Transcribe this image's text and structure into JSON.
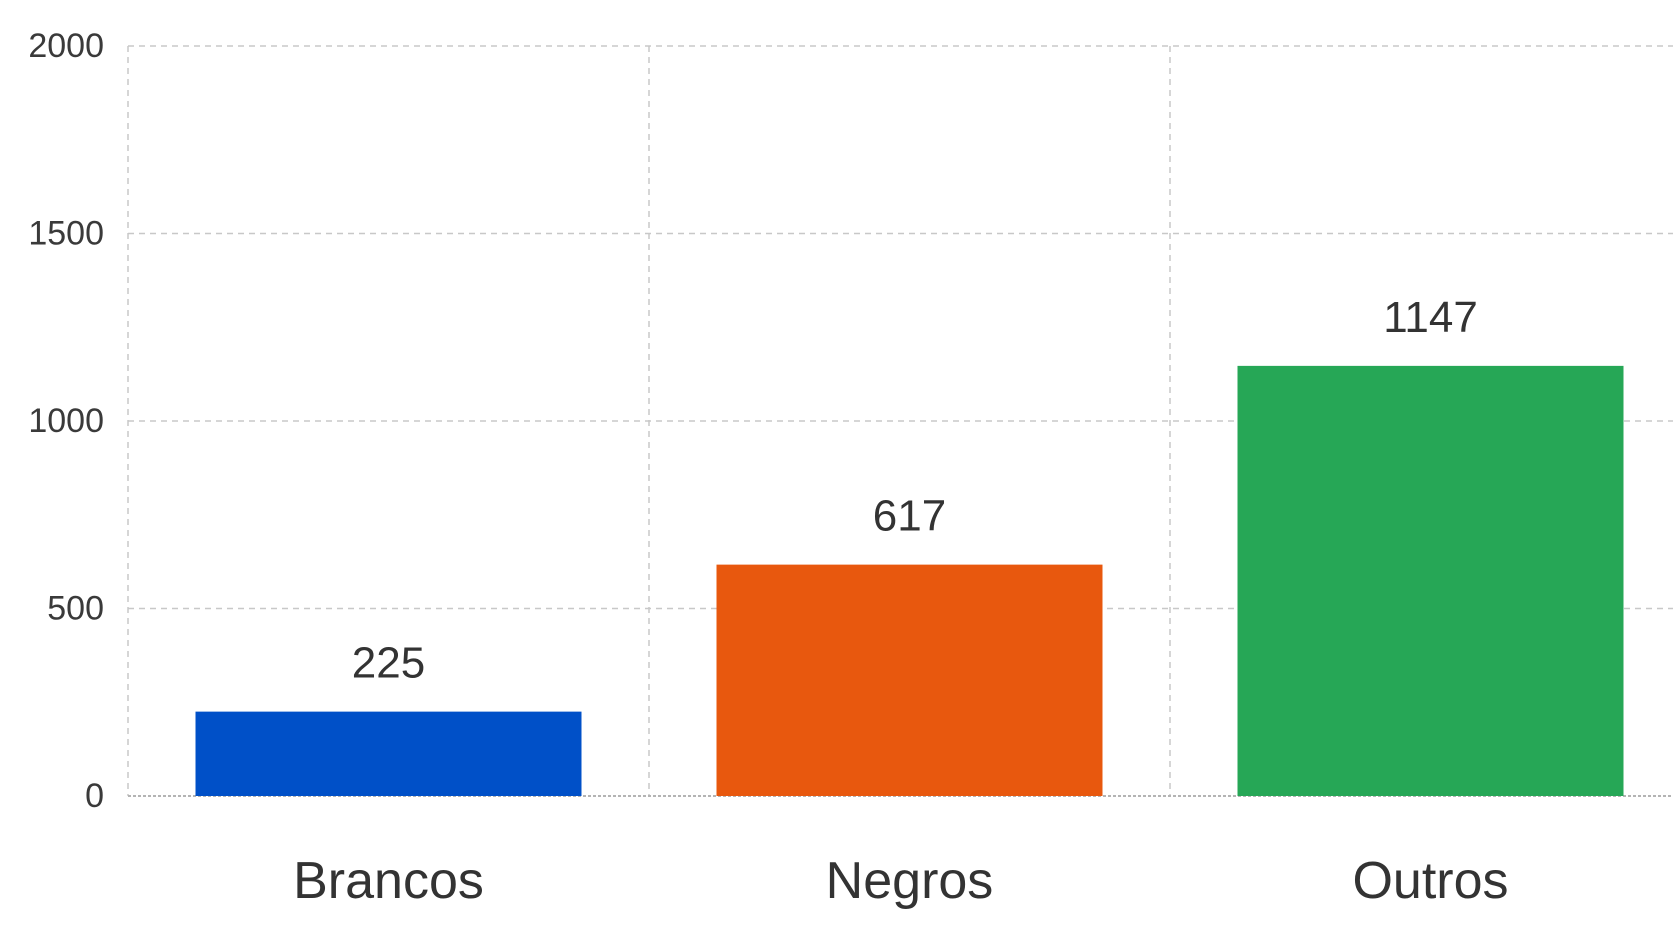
{
  "chart_data": {
    "type": "bar",
    "title": "",
    "xlabel": "",
    "ylabel": "",
    "categories": [
      "Brancos",
      "Negros",
      "Outros"
    ],
    "values": [
      225,
      617,
      1147
    ],
    "colors": [
      "#0050c8",
      "#e8580e",
      "#26a756"
    ],
    "ylim": [
      0,
      2000
    ],
    "yticks": [
      0,
      500,
      1000,
      1500,
      2000
    ],
    "ytick_labels": [
      "0",
      "500",
      "1000",
      "1500",
      "2000"
    ],
    "grid": true,
    "legend": "none"
  }
}
